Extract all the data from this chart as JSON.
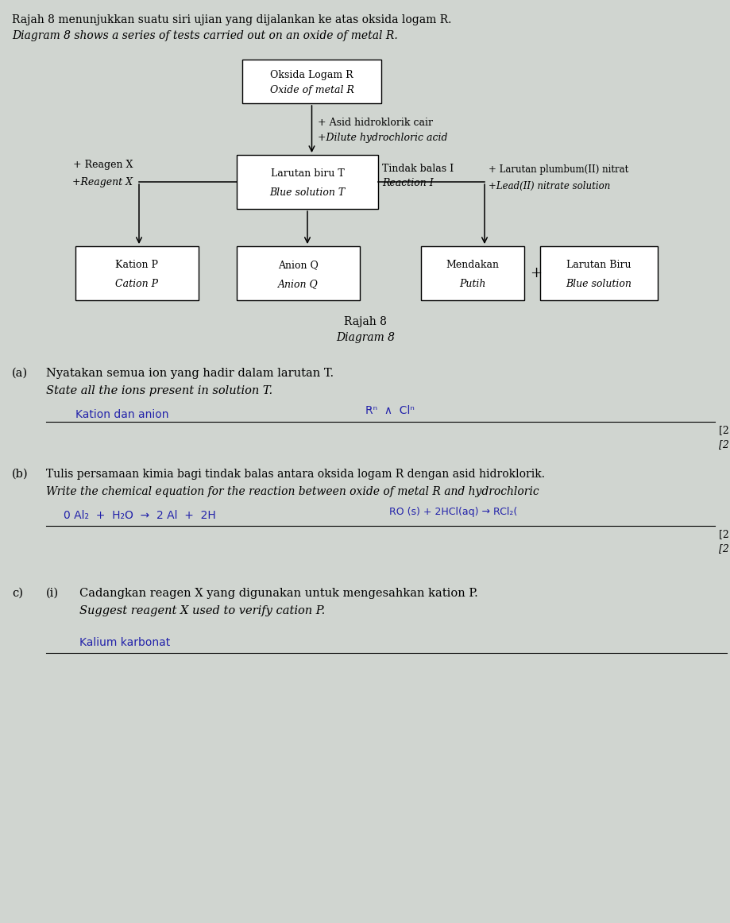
{
  "bg_color": "#d0d5d0",
  "title_line1": "Rajah 8 menunjukkan suatu siri ujian yang dijalankan ke atas oksida logam R.",
  "title_line2": "Diagram 8 shows a series of tests carried out on an oxide of metal R.",
  "acid_label_line1": "+ Asid hidroklorik cair",
  "acid_label_line2": "+Dilute hydrochloric acid",
  "reaction_label_line1": "Tindak balas I",
  "reaction_label_line2": "Reaction I",
  "lead_label_line1": "+ Larutan plumbum(II) nitrat",
  "lead_label_line2": "+Lead(II) nitrate solution",
  "reagent_label_line1": "+ Reagen X",
  "reagent_label_line2": "+Reagent X",
  "diagram_label_line1": "Rajah 8",
  "diagram_label_line2": "Diagram 8"
}
